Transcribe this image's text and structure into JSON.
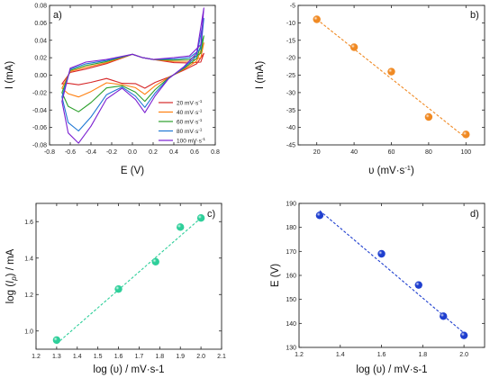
{
  "chart_data": [
    {
      "panel": "a)",
      "type": "line",
      "xlabel": "E (V)",
      "ylabel": "I (mA)",
      "xlim": [
        -0.8,
        0.8
      ],
      "ylim": [
        -0.08,
        0.08
      ],
      "xticks": [
        "-0.8",
        "-0.6",
        "-0.4",
        "-0.2",
        "0.0",
        "0.2",
        "0.4",
        "0.6",
        "0.8"
      ],
      "yticks": [
        "0.08",
        "0.06",
        "0.04",
        "0.02",
        "0.00",
        "-0.02",
        "-0.04",
        "-0.06",
        "-0.08"
      ],
      "legend_position": "lower-right",
      "series": [
        {
          "name": "20 mV·s",
          "exponent": "-1",
          "color": "#d62728",
          "cathodic_peak_I": -0.011,
          "anodic_peak_I": -0.015,
          "vertex_I": 0.025
        },
        {
          "name": "40 mV·s",
          "exponent": "-1",
          "color": "#ff7f0e",
          "cathodic_peak_I": -0.025,
          "anodic_peak_I": -0.022,
          "vertex_I": 0.037
        },
        {
          "name": "60 mV·s",
          "exponent": "-1",
          "color": "#2ca02c",
          "cathodic_peak_I": -0.042,
          "anodic_peak_I": -0.03,
          "vertex_I": 0.045
        },
        {
          "name": "80 mV·s",
          "exponent": "-1",
          "color": "#1f77d4",
          "cathodic_peak_I": -0.064,
          "anodic_peak_I": -0.037,
          "vertex_I": 0.065
        },
        {
          "name": "100 mV·s",
          "exponent": "-1",
          "color": "#7b1fd1",
          "cathodic_peak_I": -0.078,
          "anodic_peak_I": -0.043,
          "vertex_I": 0.077
        }
      ]
    },
    {
      "panel": "b)",
      "type": "scatter",
      "xlabel": "υ (mV·s",
      "xlabel_exp": "-1",
      "xlabel_close": ")",
      "ylabel": "I (mA)",
      "xlim": [
        10,
        110
      ],
      "ylim": [
        -45,
        -5
      ],
      "xticks": [
        "20",
        "40",
        "60",
        "80",
        "100"
      ],
      "yticks": [
        "-5",
        "-10",
        "-15",
        "-20",
        "-25",
        "-30",
        "-35",
        "-40",
        "-45"
      ],
      "x": [
        20,
        40,
        60,
        80,
        100
      ],
      "y": [
        -9.0,
        -17.0,
        -24.0,
        -37.0,
        -42.0
      ],
      "fit": {
        "x": [
          20,
          100
        ],
        "y": [
          -9.0,
          -43.0
        ]
      },
      "color": "#f08a24"
    },
    {
      "panel": "c)",
      "type": "scatter",
      "xlabel": "log (υ) / mV·s-1",
      "ylabel_pre": "log (",
      "ylabel_it": "I",
      "ylabel_sub": "p",
      "ylabel_post": ") / mA",
      "xlim": [
        1.2,
        2.1
      ],
      "ylim": [
        0.9,
        1.7
      ],
      "xticks": [
        "1.2",
        "1.3",
        "1.4",
        "1.5",
        "1.6",
        "1.7",
        "1.8",
        "1.9",
        "2.0",
        "2.1"
      ],
      "yticks": [
        "1.0",
        "1.2",
        "1.4",
        "1.6"
      ],
      "x": [
        1.3,
        1.6,
        1.78,
        1.9,
        2.0
      ],
      "y": [
        0.95,
        1.23,
        1.38,
        1.57,
        1.62
      ],
      "fit": {
        "x": [
          1.3,
          2.0
        ],
        "y": [
          0.93,
          1.62
        ]
      },
      "color": "#2ecf9a"
    },
    {
      "panel": "d)",
      "type": "scatter",
      "xlabel": "log (υ) / mV·s-1",
      "ylabel": "E (V)",
      "xlim": [
        1.2,
        2.1
      ],
      "ylim": [
        130,
        190
      ],
      "xticks": [
        "1.2",
        "1.4",
        "1.6",
        "1.8",
        "2.0"
      ],
      "yticks": [
        "190",
        "180",
        "170",
        "160",
        "150",
        "140",
        "130"
      ],
      "x": [
        1.3,
        1.6,
        1.78,
        1.9,
        2.0
      ],
      "y": [
        185,
        169,
        156,
        143,
        135
      ],
      "fit": {
        "x": [
          1.3,
          2.0
        ],
        "y": [
          187,
          136
        ]
      },
      "color": "#1f3fcf"
    }
  ]
}
